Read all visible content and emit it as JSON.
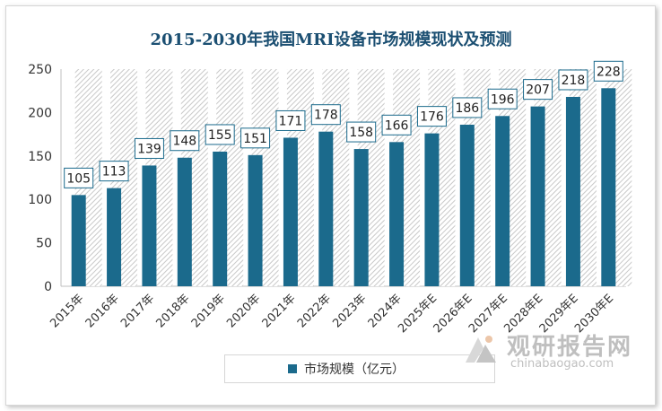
{
  "chart_data": {
    "type": "bar",
    "title": "2015-2030年我国MRI设备市场规模现状及预测",
    "categories": [
      "2015年",
      "2016年",
      "2017年",
      "2018年",
      "2019年",
      "2020年",
      "2021年",
      "2022年",
      "2023年",
      "2024年",
      "2025年E",
      "2026年E",
      "2027年E",
      "2028年E",
      "2029年E",
      "2030年E"
    ],
    "series": [
      {
        "name": "市场规模（亿元）",
        "values": [
          105,
          113,
          139,
          148,
          155,
          151,
          171,
          178,
          158,
          166,
          176,
          186,
          196,
          207,
          218,
          228
        ]
      }
    ],
    "yticks": [
      "0",
      "50",
      "100",
      "150",
      "200",
      "250"
    ],
    "ylim": [
      0,
      250
    ],
    "grid": false,
    "legend_position": "bottom",
    "bar_color": "#1b6a8c"
  },
  "watermark": {
    "cn": "观研报告网",
    "en": "chinabaogao.com"
  }
}
